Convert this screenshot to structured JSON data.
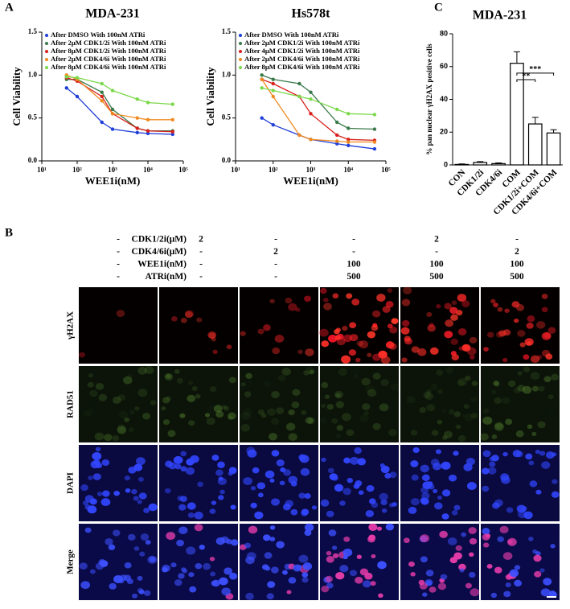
{
  "panel_labels": [
    "A",
    "B",
    "C"
  ],
  "chart_data": [
    {
      "type": "line",
      "title": "MDA-231",
      "x_label": "WEE1i(nM)",
      "y_label": "Cell Viability",
      "x_scale": "log",
      "xlim": [
        10,
        100000
      ],
      "xticks": [
        {
          "value": 10,
          "label": "10¹"
        },
        {
          "value": 100,
          "label": "10²"
        },
        {
          "value": 1000,
          "label": "10³"
        },
        {
          "value": 10000,
          "label": "10⁴"
        },
        {
          "value": 100000,
          "label": "10⁵"
        }
      ],
      "ylim": [
        0,
        1.5
      ],
      "yticks": [
        {
          "value": 0,
          "label": "0.0"
        },
        0.5,
        {
          "value": 1,
          "label": "1.0"
        },
        {
          "value": 1.5,
          "label": "1.5"
        }
      ],
      "legend": "upper right",
      "x": [
        50,
        100,
        500,
        1000,
        5000,
        10000,
        50000
      ],
      "series": [
        {
          "name": "After DMSO With 100nM ATRi",
          "color": "#1f3fd8",
          "values": [
            0.85,
            0.75,
            0.45,
            0.37,
            0.33,
            0.32,
            0.31
          ]
        },
        {
          "name": "After 2μM CDK1/2i With 100nM ATRi",
          "color": "#3a7a4a",
          "values": [
            0.95,
            0.95,
            0.8,
            0.6,
            0.38,
            0.35,
            0.35
          ]
        },
        {
          "name": "After 8μM CDK1/2i With 100nM ATRi",
          "color": "#d8201c",
          "values": [
            0.97,
            0.93,
            0.75,
            0.55,
            0.38,
            0.35,
            0.34
          ]
        },
        {
          "name": "After 2μM CDK4/6i With 100nM ATRi",
          "color": "#f08a20",
          "values": [
            1.0,
            0.95,
            0.7,
            0.55,
            0.5,
            0.48,
            0.48
          ]
        },
        {
          "name": "After 8μM CDK4/6i With 100nM ATRi",
          "color": "#7ad84a",
          "values": [
            0.98,
            0.97,
            0.9,
            0.82,
            0.72,
            0.68,
            0.66
          ]
        }
      ]
    },
    {
      "type": "line",
      "title": "Hs578t",
      "x_label": "WEE1i(nM)",
      "y_label": "Cell Viability",
      "x_scale": "log",
      "xlim": [
        10,
        100000
      ],
      "xticks": [
        {
          "value": 10,
          "label": "10¹"
        },
        {
          "value": 100,
          "label": "10²"
        },
        {
          "value": 1000,
          "label": "10³"
        },
        {
          "value": 10000,
          "label": "10⁴"
        },
        {
          "value": 100000,
          "label": "10⁵"
        }
      ],
      "ylim": [
        0,
        1.5
      ],
      "yticks": [
        {
          "value": 0,
          "label": "0.0"
        },
        0.5,
        {
          "value": 1,
          "label": "1.0"
        },
        {
          "value": 1.5,
          "label": "1.5"
        }
      ],
      "legend": "upper right",
      "x": [
        50,
        100,
        500,
        1000,
        5000,
        10000,
        50000
      ],
      "series": [
        {
          "name": "After DMSO With 100nM ATRi",
          "color": "#1f3fd8",
          "values": [
            0.5,
            0.42,
            0.3,
            0.25,
            0.2,
            0.18,
            0.14
          ]
        },
        {
          "name": "After 2μM CDK1/2i With 100nM ATRi",
          "color": "#3a7a4a",
          "values": [
            1.0,
            0.95,
            0.9,
            0.8,
            0.45,
            0.38,
            0.37
          ]
        },
        {
          "name": "After 4μM CDK1/2i With 100nM ATRi",
          "color": "#d8201c",
          "values": [
            0.95,
            0.9,
            0.75,
            0.55,
            0.3,
            0.25,
            0.24
          ]
        },
        {
          "name": "After 2μM CDK4/6i With 100nM ATRi",
          "color": "#f08a20",
          "values": [
            0.95,
            0.75,
            0.3,
            0.25,
            0.23,
            0.22,
            0.22
          ]
        },
        {
          "name": "After 8μM CDK4/6i With 100nM ATRi",
          "color": "#7ad84a",
          "values": [
            0.85,
            0.82,
            0.75,
            0.72,
            0.6,
            0.55,
            0.54
          ]
        }
      ]
    },
    {
      "type": "bar",
      "title": "MDA-231",
      "y_label": "% pan nuclear γH2AX positive cells",
      "categories": [
        "CON",
        "CDK1/2i",
        "CDK4/6i",
        "COM",
        "CDK1/2i+COM",
        "CDK4/6i+COM"
      ],
      "values": [
        0.3,
        1.5,
        0.8,
        62,
        25,
        19.5
      ],
      "errors": [
        0.3,
        0.5,
        0.4,
        7,
        4,
        2
      ],
      "color": "#ffffff",
      "ylim": [
        0,
        80
      ],
      "yticks": [
        0,
        20,
        40,
        60,
        80
      ],
      "annotations": [
        "**",
        "***"
      ]
    }
  ],
  "treatments": {
    "rows": [
      {
        "label": "CDK1/2i(μM)",
        "cells": [
          "-",
          "2",
          "-",
          "-",
          "2",
          "-"
        ]
      },
      {
        "label": "CDK4/6i(μM)",
        "cells": [
          "-",
          "-",
          "2",
          "-",
          "-",
          "2"
        ]
      },
      {
        "label": "WEE1i(nM)",
        "cells": [
          "-",
          "-",
          "-",
          "100",
          "100",
          "100"
        ]
      },
      {
        "label": "ATRi(nM)",
        "cells": [
          "-",
          "-",
          "-",
          "500",
          "500",
          "500"
        ]
      }
    ]
  },
  "image_rows": [
    "γH2AX",
    "RAD51",
    "DAPI",
    "Merge"
  ]
}
